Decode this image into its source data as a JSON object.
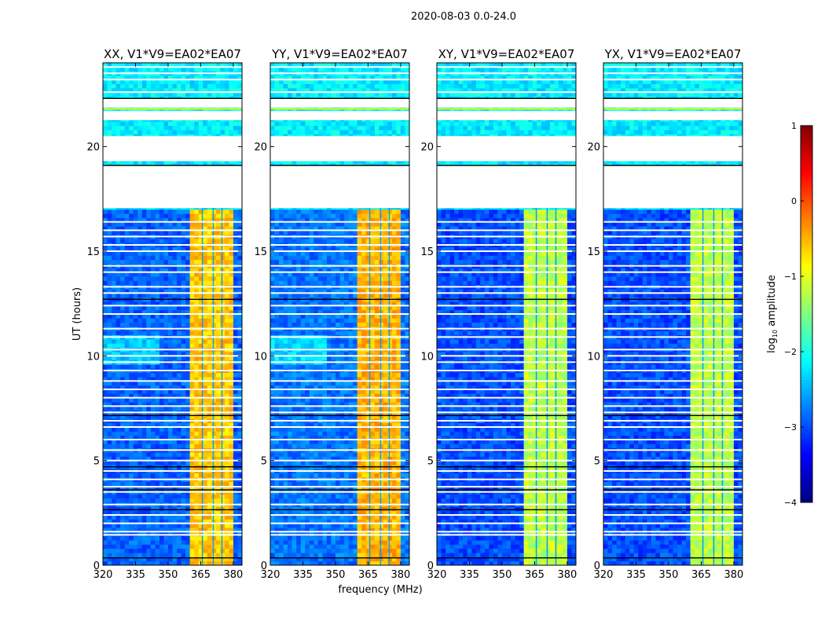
{
  "suptitle": "2020-08-03 0.0-24.0",
  "chart_data": {
    "type": "heatmap",
    "title": "2020-08-03 0.0-24.0",
    "xlabel": "frequency (MHz)",
    "ylabel": "UT (hours)",
    "xlim": [
      320,
      384
    ],
    "ylim": [
      0,
      24
    ],
    "xticks": [
      320,
      335,
      350,
      365,
      380
    ],
    "yticks": [
      0,
      5,
      10,
      15,
      20
    ],
    "panels": [
      {
        "title": "XX, V1*V9=EA02*EA07",
        "low_level": -2.9,
        "band_level": -0.6,
        "upper_level": -2.2
      },
      {
        "title": "YY, V1*V9=EA02*EA07",
        "low_level": -2.8,
        "band_level": -0.5,
        "upper_level": -2.2
      },
      {
        "title": "XY, V1*V9=EA02*EA07",
        "low_level": -3.0,
        "band_level": -1.2,
        "upper_level": -2.2
      },
      {
        "title": "YX, V1*V9=EA02*EA07",
        "low_level": -3.0,
        "band_level": -1.2,
        "upper_level": -2.2
      }
    ],
    "band_MHz": [
      360.5,
      380
    ],
    "band_dips_MHz": [
      365.5,
      370.5,
      374.5
    ],
    "flagged_ranges_hours": [
      [
        17.06,
        19.1
      ],
      [
        19.3,
        20.5
      ],
      [
        21.26,
        21.7
      ],
      [
        21.86,
        22.3
      ]
    ],
    "flagged_lines_hours": [
      1.45,
      1.6,
      2.0,
      2.4,
      2.9,
      3.5,
      3.75,
      4.1,
      4.5,
      5.0,
      5.5,
      6.0,
      6.6,
      6.9,
      7.3,
      7.6,
      8.0,
      8.4,
      8.8,
      9.3,
      9.7,
      10.0,
      10.3,
      10.9,
      11.3,
      12.0,
      12.4,
      13.0,
      13.3,
      14.0,
      14.3,
      15.0,
      15.3,
      15.7,
      16.0,
      16.4,
      22.6,
      23.2,
      23.5,
      23.8
    ],
    "zero_lines_hours": [
      0.35,
      2.65,
      3.6,
      4.7,
      7.15,
      12.7,
      19.1,
      22.3
    ],
    "rfi_line_hour": 21.8,
    "colorbar": {
      "label": "log10 amplitude",
      "range": [
        -4,
        1
      ],
      "ticks": [
        1,
        0,
        -1,
        -2,
        -3,
        -4
      ],
      "tick_labels": [
        "1",
        "0",
        "−1",
        "−2",
        "−3",
        "−4"
      ],
      "colormap": "jet"
    }
  }
}
